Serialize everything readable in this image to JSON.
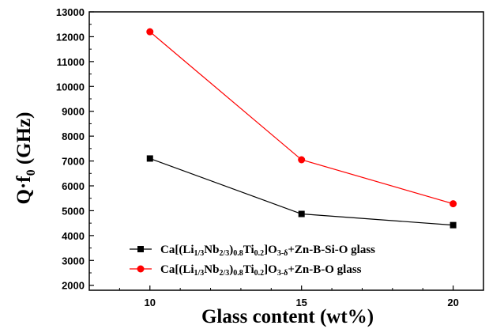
{
  "chart_data": {
    "type": "line",
    "xlabel": "Glass content (wt%)",
    "ylabel": "Q·f0 (GHz)",
    "ylabel_main": "Q·f",
    "ylabel_sub": "0",
    "ylabel_unit": " (GHz)",
    "x": [
      10,
      15,
      20
    ],
    "xlim": [
      8,
      21
    ],
    "ylim": [
      1800,
      13000
    ],
    "xticks": [
      "10",
      "15",
      "20"
    ],
    "yticks": [
      "2000",
      "3000",
      "4000",
      "5000",
      "6000",
      "7000",
      "8000",
      "9000",
      "10000",
      "11000",
      "12000",
      "13000"
    ],
    "grid": false,
    "legend_position": "bottom-left",
    "series": [
      {
        "name": "Ca[(Li1/3Nb2/3)0.8Ti0.2]O3-δ+Zn-B-Si-O glass",
        "legend_parts": [
          [
            "Ca[(Li",
            false
          ],
          [
            "1/3",
            true
          ],
          [
            "Nb",
            false
          ],
          [
            "2/3",
            true
          ],
          [
            ")",
            false
          ],
          [
            "0.8",
            true
          ],
          [
            "Ti",
            false
          ],
          [
            "0.2",
            true
          ],
          [
            "]O",
            false
          ],
          [
            "3-δ",
            true
          ],
          [
            "+Zn-B-Si-O glass",
            false
          ]
        ],
        "values": [
          7100,
          4870,
          4420
        ],
        "color": "#000000",
        "marker": "square"
      },
      {
        "name": "Ca[(Li1/3Nb2/3)0.8Ti0.2]O3-δ+Zn-B-O glass",
        "legend_parts": [
          [
            "Ca[(Li",
            false
          ],
          [
            "1/3",
            true
          ],
          [
            "Nb",
            false
          ],
          [
            "2/3",
            true
          ],
          [
            ")",
            false
          ],
          [
            "0.8",
            true
          ],
          [
            "Ti",
            false
          ],
          [
            "0.2",
            true
          ],
          [
            "]O",
            false
          ],
          [
            "3-δ",
            true
          ],
          [
            "+Zn-B-O glass",
            false
          ]
        ],
        "values": [
          12200,
          7050,
          5280
        ],
        "color": "#ff0000",
        "marker": "circle"
      }
    ]
  }
}
